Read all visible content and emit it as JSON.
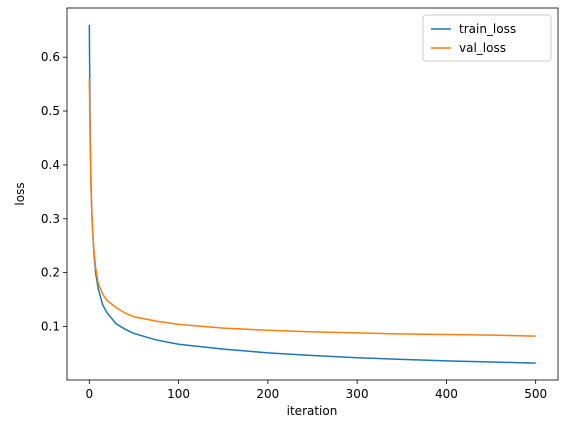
{
  "chart_data": {
    "type": "line",
    "xlabel": "iteration",
    "ylabel": "loss",
    "x": [
      0,
      1,
      2,
      3,
      5,
      7,
      10,
      15,
      20,
      30,
      40,
      50,
      75,
      100,
      150,
      200,
      250,
      300,
      350,
      400,
      450,
      500
    ],
    "series": [
      {
        "name": "train_loss",
        "color": "#1f77b4",
        "values": [
          0.66,
          0.45,
          0.36,
          0.3,
          0.24,
          0.2,
          0.17,
          0.14,
          0.125,
          0.105,
          0.095,
          0.087,
          0.075,
          0.067,
          0.058,
          0.051,
          0.046,
          0.042,
          0.039,
          0.036,
          0.034,
          0.032
        ]
      },
      {
        "name": "val_loss",
        "color": "#ff7f0e",
        "values": [
          0.56,
          0.43,
          0.35,
          0.3,
          0.245,
          0.21,
          0.18,
          0.16,
          0.148,
          0.135,
          0.125,
          0.118,
          0.11,
          0.104,
          0.097,
          0.093,
          0.09,
          0.088,
          0.086,
          0.085,
          0.084,
          0.082
        ]
      }
    ],
    "xlim": [
      -25,
      525
    ],
    "xticks": [
      0,
      100,
      200,
      300,
      400,
      500
    ],
    "ylim": [
      0.0006,
      0.6914
    ],
    "yticks": [
      0.1,
      0.2,
      0.3,
      0.4,
      0.5,
      0.6
    ],
    "legend": "upper right",
    "grid": false
  }
}
